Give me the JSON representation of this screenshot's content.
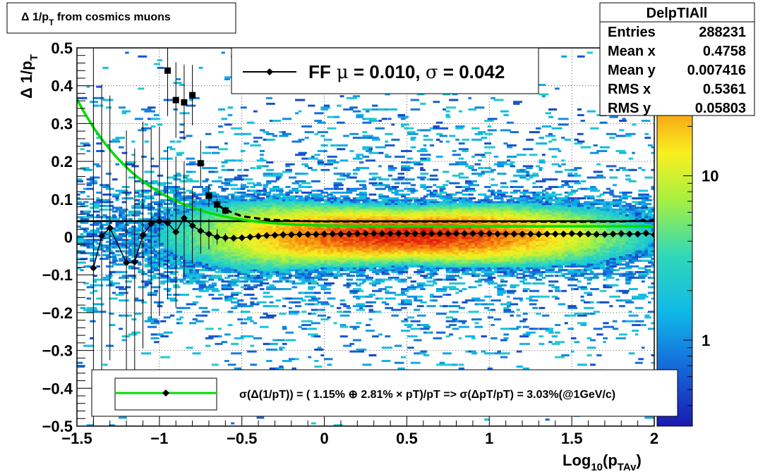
{
  "chart_data": {
    "type": "heatmap",
    "title": "Δ 1/pT from cosmics muons",
    "title_main": "Δ 1/p",
    "title_sub": "T",
    "title_tail": " from cosmics muons",
    "xlabel_main": "Log",
    "xlabel_sub1": "10",
    "xlabel_mid": "(p",
    "xlabel_sub2": "TAv",
    "xlabel_end": ")",
    "ylabel_main": "Δ 1/p",
    "ylabel_sub": "T",
    "xlim": [
      -1.5,
      2.0
    ],
    "ylim": [
      -0.5,
      0.5
    ],
    "xticks": [
      -1.5,
      -1,
      -0.5,
      0,
      0.5,
      1,
      1.5,
      2
    ],
    "xtick_labels": [
      "−1.5",
      "−1",
      "−0.5",
      "0",
      "0.5",
      "1",
      "1.5",
      "2"
    ],
    "yticks": [
      -0.5,
      -0.4,
      -0.3,
      -0.2,
      -0.1,
      0,
      0.1,
      0.2,
      0.3,
      0.4,
      0.5
    ],
    "ytick_labels": [
      "−0.5",
      "−0.4",
      "−0.3",
      "−0.2",
      "−0.1",
      "0",
      "0.1",
      "0.2",
      "0.3",
      "0.4",
      "0.5"
    ],
    "grid": true,
    "colorbar": {
      "scale": "log",
      "tick_labels": [
        "1",
        "10"
      ],
      "tick_values": [
        1,
        10
      ],
      "range": [
        0.3,
        60
      ]
    },
    "stats_box": {
      "title": "DelpTIAll",
      "rows": [
        {
          "label": "Entries",
          "value": "288231"
        },
        {
          "label": "Mean x",
          "value": "0.4758"
        },
        {
          "label": "Mean y",
          "value": "0.007416"
        },
        {
          "label": "RMS x",
          "value": "0.5361"
        },
        {
          "label": "RMS y",
          "value": "0.05803"
        }
      ]
    },
    "legend_ff": {
      "prefix": "FF",
      "mu_symbol": "μ",
      "mu_text": " =  0.010, ",
      "sigma_symbol": "σ",
      "sigma_text": " =   0.042"
    },
    "legend_fit": {
      "text": "σ(Δ(1/pT)) = ( 1.15% ⊕  2.81% × pT)/pT => σ(ΔpT/pT) =  3.03%(@1GeV/c)"
    },
    "mean_series": {
      "name": "mean",
      "x": [
        -1.4,
        -1.35,
        -1.3,
        -1.2,
        -1.15,
        -1.1,
        -1.05,
        -1.0,
        -0.95,
        -0.9,
        -0.85,
        -0.8,
        -0.75,
        -0.7,
        -0.65,
        -0.6,
        -0.55,
        -0.5,
        -0.45,
        -0.4,
        -0.35,
        -0.3,
        -0.25,
        -0.2,
        -0.15,
        -0.1,
        -0.05,
        0.0,
        0.05,
        0.1,
        0.15,
        0.2,
        0.25,
        0.3,
        0.35,
        0.4,
        0.45,
        0.5,
        0.55,
        0.6,
        0.65,
        0.7,
        0.75,
        0.8,
        0.85,
        0.9,
        0.95,
        1.0,
        1.05,
        1.1,
        1.15,
        1.2,
        1.25,
        1.3,
        1.35,
        1.4,
        1.45,
        1.5,
        1.55,
        1.6,
        1.65,
        1.7,
        1.75,
        1.8,
        1.85,
        1.9,
        1.95,
        2.0
      ],
      "y": [
        -0.082,
        0.003,
        0.024,
        -0.068,
        -0.066,
        0.005,
        0.035,
        0.042,
        0.037,
        0.013,
        0.05,
        0.03,
        0.016,
        0.008,
        0.0,
        -0.002,
        -0.003,
        -0.002,
        0.0,
        0.002,
        0.004,
        0.005,
        0.006,
        0.006,
        0.007,
        0.007,
        0.007,
        0.008,
        0.008,
        0.008,
        0.008,
        0.009,
        0.009,
        0.009,
        0.009,
        0.009,
        0.009,
        0.009,
        0.009,
        0.009,
        0.009,
        0.009,
        0.009,
        0.009,
        0.009,
        0.009,
        0.009,
        0.009,
        0.008,
        0.008,
        0.008,
        0.008,
        0.008,
        0.007,
        0.008,
        0.008,
        0.008,
        0.009,
        0.008,
        0.008,
        0.007,
        0.007,
        0.008,
        0.009,
        0.008,
        0.008,
        0.01,
        0.006
      ],
      "yerr": [
        0.6,
        0.4,
        0.35,
        0.35,
        0.3,
        0.3,
        0.25,
        0.25,
        0.2,
        0.2,
        0.15,
        0.1,
        0.06,
        0.04,
        0.02,
        0.012,
        0.008,
        0.005,
        0.004,
        0.003,
        0.002,
        0.002,
        0.002,
        0.002,
        0.002,
        0.002,
        0.002,
        0.002,
        0.002,
        0.002,
        0.002,
        0.002,
        0.002,
        0.002,
        0.002,
        0.002,
        0.002,
        0.002,
        0.002,
        0.002,
        0.002,
        0.002,
        0.002,
        0.002,
        0.002,
        0.002,
        0.002,
        0.002,
        0.002,
        0.002,
        0.002,
        0.002,
        0.002,
        0.002,
        0.002,
        0.002,
        0.002,
        0.002,
        0.002,
        0.003,
        0.003,
        0.003,
        0.003,
        0.004,
        0.004,
        0.004,
        0.005,
        0.006
      ]
    },
    "sigma_series": {
      "name": "sigma",
      "x": [
        -0.95,
        -0.9,
        -0.85,
        -0.8,
        -0.75,
        -0.7,
        -0.65,
        -0.6
      ],
      "y": [
        0.44,
        0.362,
        0.356,
        0.375,
        0.195,
        0.109,
        0.086,
        0.07
      ],
      "yerr": [
        0.12,
        0.1,
        0.1,
        0.08,
        0.06,
        0.03,
        0.02,
        0.01
      ]
    },
    "sigma_step": {
      "x": [
        -0.65,
        -0.6,
        -0.55,
        -0.5,
        -0.45,
        -0.4,
        -0.35,
        -0.3,
        -0.25,
        -0.2,
        -0.1,
        0.0,
        0.5,
        1.0,
        1.5,
        1.8,
        1.9,
        2.0
      ],
      "y": [
        0.085,
        0.072,
        0.063,
        0.055,
        0.052,
        0.049,
        0.047,
        0.045,
        0.044,
        0.043,
        0.042,
        0.041,
        0.041,
        0.041,
        0.04,
        0.041,
        0.043,
        0.045
      ]
    },
    "fit_curve": {
      "name": "fit",
      "a": 0.0115,
      "b": 0.0281
    },
    "ff_line": {
      "y": 0.042
    },
    "colors": {
      "fit": "#00dd00",
      "markers": "#000000"
    }
  }
}
